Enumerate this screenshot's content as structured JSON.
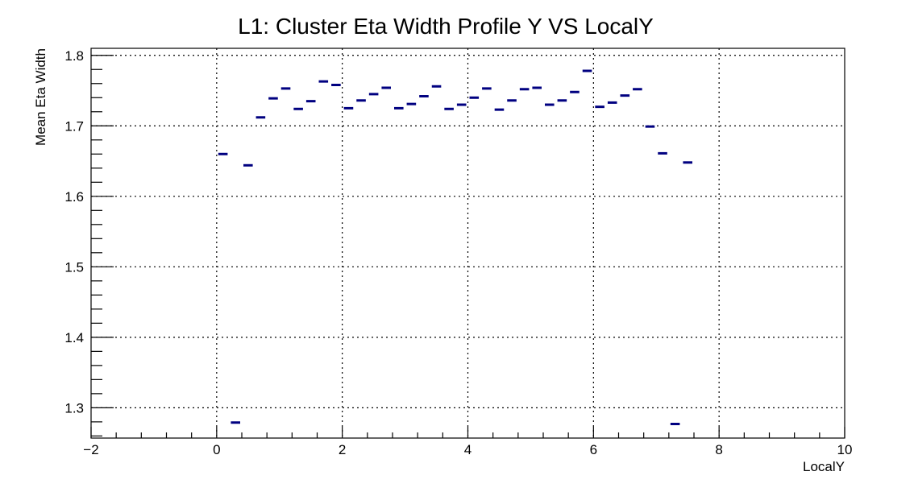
{
  "chart_data": {
    "type": "scatter",
    "title": "L1: Cluster Eta Width Profile Y VS LocalY",
    "xlabel": "LocalY",
    "ylabel": "Mean Eta Width",
    "xlim": [
      -2,
      10
    ],
    "ylim": [
      1.257,
      1.81
    ],
    "x_ticks": [
      -2,
      0,
      2,
      4,
      6,
      8,
      10
    ],
    "y_ticks": [
      1.3,
      1.4,
      1.5,
      1.6,
      1.7,
      1.8
    ],
    "grid": true,
    "bin_width": 0.2,
    "marker_color": "#000080",
    "series": [
      {
        "x": [
          0.1,
          0.3,
          0.5,
          0.7,
          0.9,
          1.1,
          1.3,
          1.5,
          1.7,
          1.9,
          2.1,
          2.3,
          2.5,
          2.7,
          2.9,
          3.1,
          3.3,
          3.5,
          3.7,
          3.9,
          4.1,
          4.3,
          4.5,
          4.7,
          4.9,
          5.1,
          5.3,
          5.5,
          5.7,
          5.9,
          6.1,
          6.3,
          6.5,
          6.7,
          6.9,
          7.1,
          7.3,
          7.5
        ],
        "y": [
          1.66,
          1.279,
          1.644,
          1.712,
          1.739,
          1.753,
          1.724,
          1.735,
          1.763,
          1.758,
          1.725,
          1.736,
          1.745,
          1.754,
          1.725,
          1.731,
          1.742,
          1.756,
          1.724,
          1.73,
          1.74,
          1.753,
          1.723,
          1.736,
          1.752,
          1.754,
          1.73,
          1.736,
          1.748,
          1.778,
          1.727,
          1.733,
          1.743,
          1.752,
          1.699,
          1.661,
          1.277,
          1.648
        ]
      }
    ]
  }
}
